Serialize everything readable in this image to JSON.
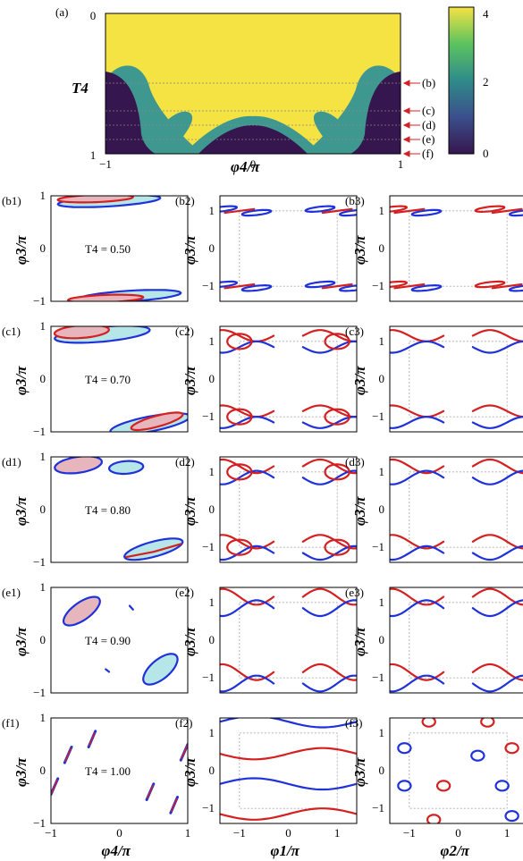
{
  "panel_a": {
    "label": "(a)",
    "xlabel": "φ4/π",
    "ylabel": "T4",
    "xticks": [
      "−1",
      "0",
      "1"
    ],
    "yticks": [
      "0",
      "1"
    ],
    "colorbar_ticks": [
      "4",
      "2",
      "0"
    ],
    "markers": [
      "(b)",
      "(c)",
      "(d)",
      "(e)",
      "(f)"
    ]
  },
  "rows": [
    {
      "labels": [
        "(b1)",
        "(b2)",
        "(b3)"
      ],
      "t4": "T4 = 0.50"
    },
    {
      "labels": [
        "(c1)",
        "(c2)",
        "(c3)"
      ],
      "t4": "T4 = 0.70"
    },
    {
      "labels": [
        "(d1)",
        "(d2)",
        "(d3)"
      ],
      "t4": "T4 = 0.80"
    },
    {
      "labels": [
        "(e1)",
        "(e2)",
        "(e3)"
      ],
      "t4": "T4 = 0.90"
    },
    {
      "labels": [
        "(f1)",
        "(f2)",
        "(f3)"
      ],
      "t4": "T4 = 1.00"
    }
  ],
  "grid_axes": {
    "ylabel": "φ3/π",
    "col_xlabels": [
      "φ4/π",
      "φ1/π",
      "φ2/π"
    ],
    "ticks": [
      "−1",
      "0",
      "1"
    ]
  },
  "colors": {
    "yellow": "#f5e243",
    "teal": "#3f9890",
    "purple": "#36164f",
    "red": "#d42020",
    "blue": "#1f32d9",
    "fill_red": "#e7b6bd",
    "fill_cyan": "#b6e6e8"
  },
  "chart_data": {
    "type": "heatmap",
    "colorbar_range": [
      0,
      4
    ],
    "xlim": [
      -1,
      1
    ],
    "ylim": [
      0,
      1
    ],
    "marker_T4": [
      0.5,
      0.7,
      0.8,
      0.9,
      1.0
    ]
  }
}
